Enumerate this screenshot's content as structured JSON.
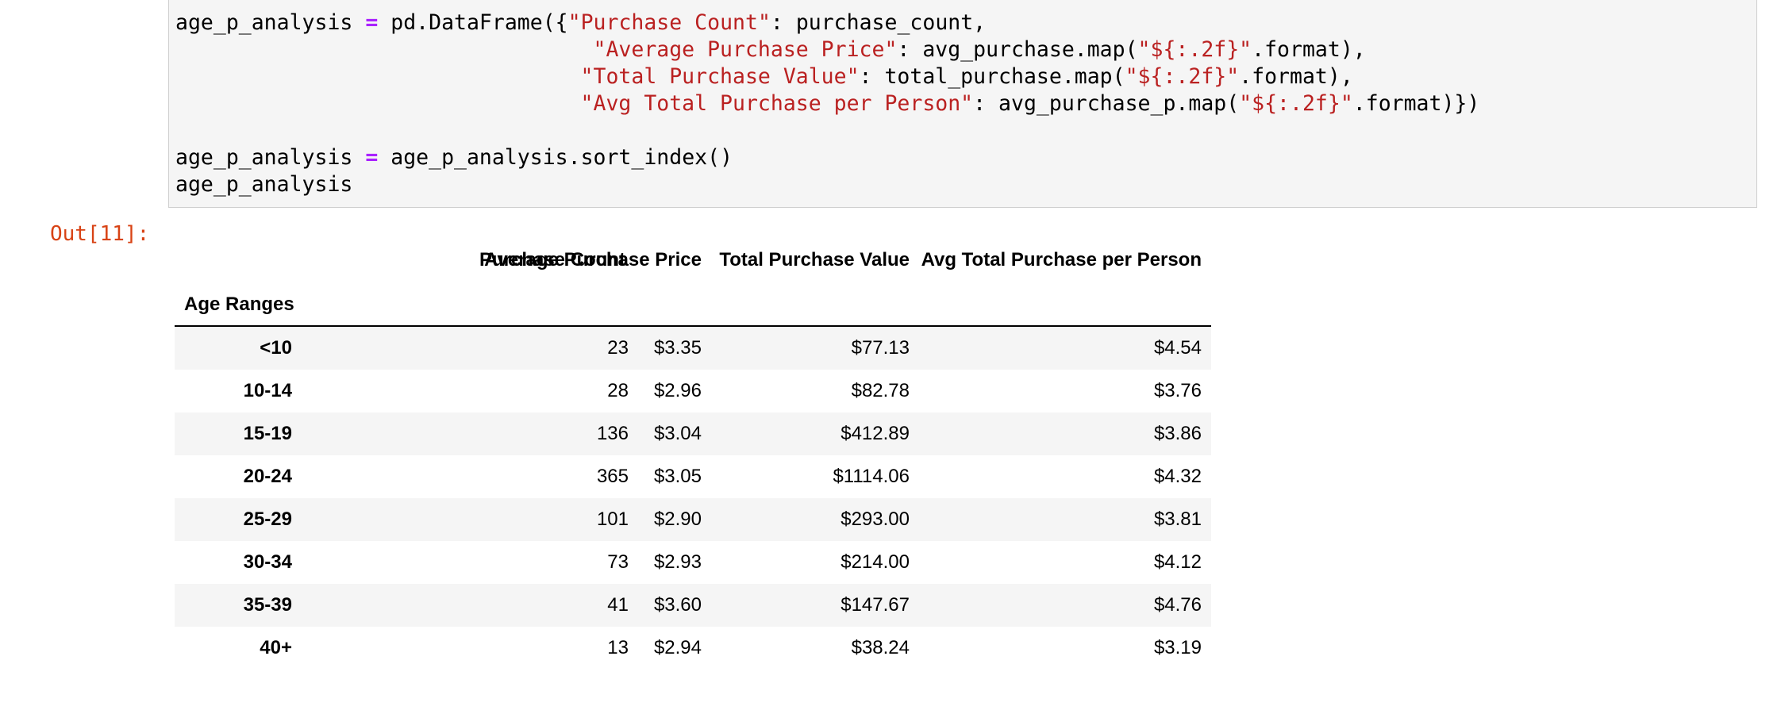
{
  "code": {
    "lines": [
      [
        {
          "t": "age_p_analysis ",
          "k": "n"
        },
        {
          "t": "=",
          "k": "op"
        },
        {
          "t": " pd.DataFrame({",
          "k": "n"
        },
        {
          "t": "\"Purchase Count\"",
          "k": "s"
        },
        {
          "t": ": purchase_count,",
          "k": "n"
        }
      ],
      [
        {
          "t": "                                 ",
          "k": "n"
        },
        {
          "t": "\"Average Purchase Price\"",
          "k": "s"
        },
        {
          "t": ": avg_purchase.map(",
          "k": "n"
        },
        {
          "t": "\"${:.2f}\"",
          "k": "s"
        },
        {
          "t": ".format),",
          "k": "n"
        }
      ],
      [
        {
          "t": "                                ",
          "k": "n"
        },
        {
          "t": "\"Total Purchase Value\"",
          "k": "s"
        },
        {
          "t": ": total_purchase.map(",
          "k": "n"
        },
        {
          "t": "\"${:.2f}\"",
          "k": "s"
        },
        {
          "t": ".format),",
          "k": "n"
        }
      ],
      [
        {
          "t": "                                ",
          "k": "n"
        },
        {
          "t": "\"Avg Total Purchase per Person\"",
          "k": "s"
        },
        {
          "t": ": avg_purchase_p.map(",
          "k": "n"
        },
        {
          "t": "\"${:.2f}\"",
          "k": "s"
        },
        {
          "t": ".format)})",
          "k": "n"
        }
      ],
      [],
      [
        {
          "t": "age_p_analysis ",
          "k": "n"
        },
        {
          "t": "=",
          "k": "op"
        },
        {
          "t": " age_p_analysis.sort_index()",
          "k": "n"
        }
      ],
      [
        {
          "t": "age_p_analysis",
          "k": "n"
        }
      ]
    ]
  },
  "output": {
    "prompt": "Out[11]:",
    "index_name": "Age Ranges",
    "columns": [
      "Purchase Count",
      "Average Purchase Price",
      "Total Purchase Value",
      "Avg Total Purchase per Person"
    ],
    "rows": [
      {
        "index": "<10",
        "values": [
          "23",
          "$3.35",
          "$77.13",
          "$4.54"
        ]
      },
      {
        "index": "10-14",
        "values": [
          "28",
          "$2.96",
          "$82.78",
          "$3.76"
        ]
      },
      {
        "index": "15-19",
        "values": [
          "136",
          "$3.04",
          "$412.89",
          "$3.86"
        ]
      },
      {
        "index": "20-24",
        "values": [
          "365",
          "$3.05",
          "$1114.06",
          "$4.32"
        ]
      },
      {
        "index": "25-29",
        "values": [
          "101",
          "$2.90",
          "$293.00",
          "$3.81"
        ]
      },
      {
        "index": "30-34",
        "values": [
          "73",
          "$2.93",
          "$214.00",
          "$4.12"
        ]
      },
      {
        "index": "35-39",
        "values": [
          "41",
          "$3.60",
          "$147.67",
          "$4.76"
        ]
      },
      {
        "index": "40+",
        "values": [
          "13",
          "$2.94",
          "$38.24",
          "$3.19"
        ]
      }
    ]
  }
}
